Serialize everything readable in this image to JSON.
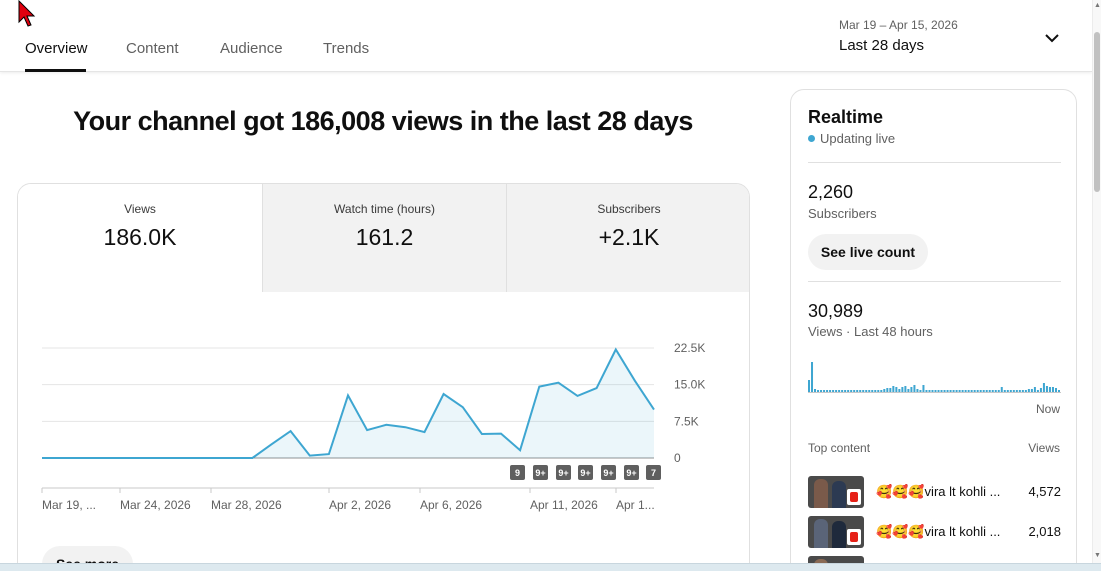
{
  "tabs": [
    {
      "label": "Overview",
      "active": true
    },
    {
      "label": "Content",
      "active": false
    },
    {
      "label": "Audience",
      "active": false
    },
    {
      "label": "Trends",
      "active": false
    }
  ],
  "date_picker": {
    "range": "Mar 19 – Apr 15, 2026",
    "label": "Last 28 days",
    "icon": "chevron-down-icon"
  },
  "headline": "Your channel got 186,008 views in the last 28 days",
  "metrics": [
    {
      "label": "Views",
      "value": "186.0K"
    },
    {
      "label": "Watch time (hours)",
      "value": "161.2"
    },
    {
      "label": "Subscribers",
      "value": "+2.1K"
    }
  ],
  "see_more_label": "See more",
  "realtime": {
    "title": "Realtime",
    "status": "Updating live",
    "subscribers_value": "2,260",
    "subscribers_label": "Subscribers",
    "live_count_button": "See live count",
    "views_value": "30,989",
    "views_label": "Views · Last 48 hours",
    "now_label": "Now",
    "top_content_label": "Top content",
    "views_header": "Views",
    "top_content": [
      {
        "title": "🥰🥰🥰vira lt kohli ...",
        "views": "4,572"
      },
      {
        "title": "🥰🥰🥰vira lt kohli ...",
        "views": "2,018"
      }
    ],
    "bars": [
      12,
      30,
      3,
      2,
      2,
      2,
      2,
      2,
      2,
      2,
      2,
      2,
      2,
      2,
      2,
      2,
      2,
      2,
      2,
      2,
      2,
      2,
      2,
      2,
      2,
      3,
      4,
      4,
      6,
      5,
      3,
      5,
      6,
      3,
      5,
      7,
      3,
      2,
      7,
      2,
      2,
      2,
      2,
      2,
      2,
      2,
      2,
      2,
      2,
      2,
      2,
      2,
      2,
      2,
      2,
      2,
      2,
      2,
      2,
      2,
      2,
      2,
      2,
      2,
      5,
      2,
      2,
      2,
      2,
      2,
      2,
      2,
      2,
      3,
      3,
      5,
      2,
      4,
      9,
      6,
      5,
      5,
      4,
      2
    ],
    "colors": {
      "accent": "#3ea6d1"
    }
  },
  "chart_data": {
    "type": "area",
    "title": "",
    "xlabel": "",
    "ylabel": "",
    "x_tick_labels": [
      "Mar 19, ...",
      "Mar 24, 2026",
      "Mar 28, 2026",
      "Apr 2, 2026",
      "Apr 6, 2026",
      "Apr 11, 2026",
      "Apr 1..."
    ],
    "y_tick_labels": [
      "22.5K",
      "15.0K",
      "7.5K",
      "0"
    ],
    "ylim": [
      0,
      22500
    ],
    "grid": true,
    "color": "#3ea6d1",
    "series": [
      {
        "values": [
          0,
          0,
          0,
          0,
          0,
          0,
          0,
          0,
          0,
          0,
          0,
          0,
          2800,
          5500,
          500,
          800,
          12800,
          5700,
          6800,
          6300,
          5300,
          13100,
          10400,
          4900,
          5000,
          1600,
          14600,
          15400,
          12700,
          14300,
          22200,
          15800,
          9900
        ]
      }
    ],
    "markers": [
      "9",
      "9+",
      "9+",
      "9+",
      "9+",
      "9+",
      "7"
    ]
  }
}
